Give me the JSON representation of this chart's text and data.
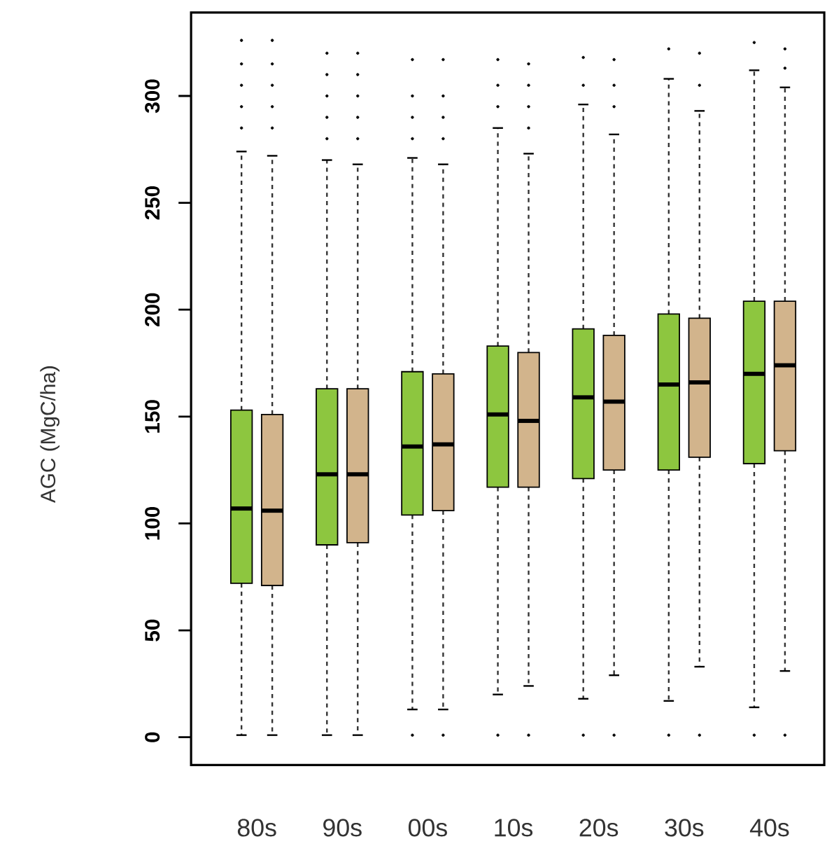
{
  "chart_data": {
    "type": "box",
    "ylabel": "AGC (MgC/ha)",
    "categories": [
      "80s",
      "90s",
      "00s",
      "10s",
      "20s",
      "30s",
      "40s"
    ],
    "ylim": [
      -13,
      339
    ],
    "yticks": [
      0,
      50,
      100,
      150,
      200,
      250,
      300
    ],
    "line_style": "dashed",
    "marker": "circle",
    "series": [
      {
        "color": "#8dc63f",
        "boxes": [
          {
            "low": 1,
            "q1": 72,
            "median": 107,
            "q3": 153,
            "high": 274,
            "outliers": [
              285,
              295,
              305,
              315,
              326
            ]
          },
          {
            "low": 1,
            "q1": 90,
            "median": 123,
            "q3": 163,
            "high": 270,
            "outliers": [
              280,
              290,
              300,
              310,
              320
            ]
          },
          {
            "low": 13,
            "q1": 104,
            "median": 136,
            "q3": 171,
            "high": 271,
            "outliers": [
              1,
              280,
              290,
              300,
              317
            ]
          },
          {
            "low": 20,
            "q1": 117,
            "median": 151,
            "q3": 183,
            "high": 285,
            "outliers": [
              1,
              295,
              305,
              317
            ]
          },
          {
            "low": 18,
            "q1": 121,
            "median": 159,
            "q3": 191,
            "high": 296,
            "outliers": [
              1,
              305,
              318
            ]
          },
          {
            "low": 17,
            "q1": 125,
            "median": 165,
            "q3": 198,
            "high": 308,
            "outliers": [
              1,
              322
            ]
          },
          {
            "low": 14,
            "q1": 128,
            "median": 170,
            "q3": 204,
            "high": 312,
            "outliers": [
              1,
              325
            ]
          }
        ]
      },
      {
        "color": "#d2b48c",
        "boxes": [
          {
            "low": 1,
            "q1": 71,
            "median": 106,
            "q3": 151,
            "high": 272,
            "outliers": [
              285,
              295,
              305,
              315,
              326
            ]
          },
          {
            "low": 1,
            "q1": 91,
            "median": 123,
            "q3": 163,
            "high": 268,
            "outliers": [
              280,
              290,
              300,
              310,
              320
            ]
          },
          {
            "low": 13,
            "q1": 106,
            "median": 137,
            "q3": 170,
            "high": 268,
            "outliers": [
              1,
              280,
              290,
              300,
              317
            ]
          },
          {
            "low": 24,
            "q1": 117,
            "median": 148,
            "q3": 180,
            "high": 273,
            "outliers": [
              1,
              285,
              295,
              305,
              315
            ]
          },
          {
            "low": 29,
            "q1": 125,
            "median": 157,
            "q3": 188,
            "high": 282,
            "outliers": [
              1,
              295,
              305,
              317
            ]
          },
          {
            "low": 33,
            "q1": 131,
            "median": 166,
            "q3": 196,
            "high": 293,
            "outliers": [
              1,
              305,
              320
            ]
          },
          {
            "low": 31,
            "q1": 134,
            "median": 174,
            "q3": 204,
            "high": 304,
            "outliers": [
              1,
              313,
              322
            ]
          }
        ]
      }
    ]
  }
}
